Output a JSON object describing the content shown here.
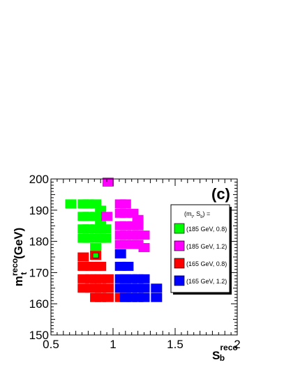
{
  "chart_data": {
    "type": "box",
    "panel_label": "(c)",
    "xlabel": {
      "main": "S",
      "sub": "b",
      "sup": "reco"
    },
    "ylabel": {
      "main": "m",
      "sub": "t",
      "sup": "reco",
      "suffix": " (GeV)"
    },
    "xlim": [
      0.5,
      2.0
    ],
    "ylim": [
      150,
      200
    ],
    "x_ticks": [
      0.5,
      1.0,
      1.5,
      2.0
    ],
    "x_tick_labels": [
      "0.5",
      "1",
      "1.5",
      "2"
    ],
    "y_ticks": [
      150,
      160,
      170,
      180,
      190,
      200
    ],
    "y_tick_labels": [
      "150",
      "160",
      "170",
      "180",
      "190",
      "200"
    ],
    "grid": false,
    "legend": {
      "placement": "right",
      "header": {
        "open": "(m",
        "sub1": "t",
        "sep": ", S",
        "sub2": "b",
        "close": ") ="
      },
      "entries": [
        "(185 GeV, 0.8)",
        "(185 GeV, 1.2)",
        "(165 GeV, 0.8)",
        "(165 GeV, 1.2)"
      ]
    },
    "series": [
      {
        "name": "(185 GeV, 0.8)",
        "color": "#00ff00",
        "boxes": [
          [
            0.66,
            192
          ],
          [
            0.76,
            192
          ],
          [
            0.8,
            192
          ],
          [
            0.86,
            192
          ],
          [
            0.9,
            190
          ],
          [
            0.76,
            188
          ],
          [
            0.8,
            188
          ],
          [
            0.86,
            188
          ],
          [
            0.9,
            186
          ],
          [
            0.76,
            184
          ],
          [
            0.8,
            184
          ],
          [
            0.86,
            184
          ],
          [
            0.9,
            184
          ],
          [
            0.94,
            184
          ],
          [
            0.76,
            181
          ],
          [
            0.8,
            181
          ],
          [
            0.86,
            181
          ],
          [
            0.9,
            181
          ],
          [
            0.94,
            181
          ],
          [
            0.86,
            178
          ]
        ]
      },
      {
        "name": "(185 GeV, 1.2)",
        "color": "#ff00ff",
        "boxes": [
          [
            0.96,
            199
          ],
          [
            0.95,
            188
          ],
          [
            1.06,
            192
          ],
          [
            1.1,
            192
          ],
          [
            1.06,
            189
          ],
          [
            1.1,
            189
          ],
          [
            1.16,
            189
          ],
          [
            1.2,
            187
          ],
          [
            1.06,
            185
          ],
          [
            1.1,
            185
          ],
          [
            1.16,
            185
          ],
          [
            1.2,
            185
          ],
          [
            1.06,
            182
          ],
          [
            1.1,
            182
          ],
          [
            1.16,
            182
          ],
          [
            1.2,
            182
          ],
          [
            1.25,
            182
          ],
          [
            1.06,
            179
          ],
          [
            1.1,
            179
          ],
          [
            1.16,
            179
          ],
          [
            1.2,
            179
          ],
          [
            1.25,
            178
          ]
        ]
      },
      {
        "name": "(165 GeV, 0.8)",
        "color": "#ff0000",
        "boxes": [
          [
            0.86,
            175.5
          ],
          [
            0.76,
            172
          ],
          [
            0.76,
            168
          ],
          [
            0.76,
            165
          ],
          [
            0.76,
            175
          ],
          [
            0.82,
            172
          ],
          [
            0.86,
            172
          ],
          [
            0.9,
            172
          ],
          [
            0.82,
            168
          ],
          [
            0.86,
            168
          ],
          [
            0.9,
            168
          ],
          [
            0.82,
            165
          ],
          [
            0.86,
            165
          ],
          [
            0.9,
            165
          ],
          [
            0.86,
            162
          ],
          [
            0.9,
            162
          ],
          [
            0.96,
            168
          ],
          [
            0.96,
            165
          ],
          [
            0.96,
            162
          ],
          [
            1.06,
            162
          ]
        ]
      },
      {
        "name": "(165 GeV, 1.2)",
        "color": "#0000ff",
        "boxes": [
          [
            1.06,
            176
          ],
          [
            1.06,
            172
          ],
          [
            1.12,
            172
          ],
          [
            1.06,
            168
          ],
          [
            1.1,
            168
          ],
          [
            1.15,
            168
          ],
          [
            1.2,
            168
          ],
          [
            1.25,
            168
          ],
          [
            1.06,
            165
          ],
          [
            1.1,
            165
          ],
          [
            1.15,
            165
          ],
          [
            1.2,
            165
          ],
          [
            1.25,
            165
          ],
          [
            1.1,
            162
          ],
          [
            1.15,
            162
          ],
          [
            1.2,
            162
          ],
          [
            1.25,
            162
          ],
          [
            1.35,
            165
          ],
          [
            1.35,
            162
          ]
        ]
      }
    ]
  }
}
